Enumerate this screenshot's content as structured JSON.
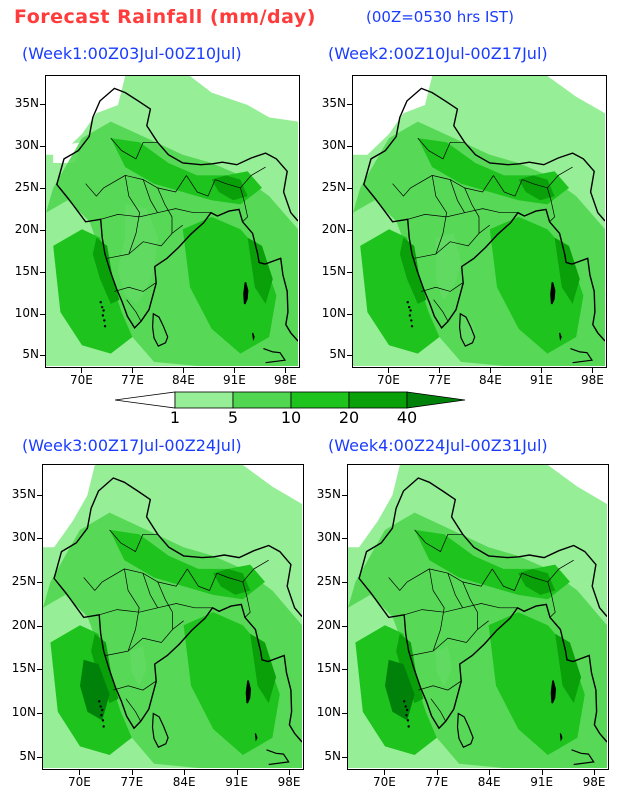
{
  "header": {
    "title": "Forecast Rainfall (mm/day)",
    "time_note": "(00Z=0530 hrs IST)"
  },
  "panels": [
    {
      "title": "(Week1:00Z03Jul-00Z10Jul)"
    },
    {
      "title": "(Week2:00Z10Jul-00Z17Jul)"
    },
    {
      "title": "(Week3:00Z17Jul-00Z24Jul)"
    },
    {
      "title": "(Week4:00Z24Jul-00Z31Jul)"
    }
  ],
  "axes": {
    "lat_labels": [
      "35N",
      "30N",
      "25N",
      "20N",
      "15N",
      "10N",
      "5N"
    ],
    "lon_labels": [
      "70E",
      "77E",
      "84E",
      "91E",
      "98E"
    ]
  },
  "legend": {
    "thresholds": [
      "1",
      "5",
      "10",
      "20",
      "40"
    ],
    "colors": [
      "#ffffff",
      "#96ee96",
      "#50d650",
      "#1ec31e",
      "#0aa00a",
      "#00820a"
    ]
  },
  "colors": {
    "title": "#ff3b3b",
    "panel_title": "#1a3cff",
    "background": "#ffffff"
  }
}
